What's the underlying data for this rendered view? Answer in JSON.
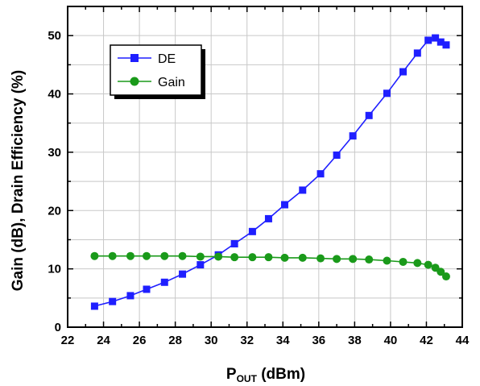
{
  "chart_data": {
    "type": "line",
    "xlabel": {
      "main": "P",
      "sub": "OUT",
      "rest": " (dBm)"
    },
    "ylabel": "Gain (dB), Drain Efficiency (%)",
    "xlim": [
      22,
      44
    ],
    "ylim": [
      0,
      55
    ],
    "xticks": [
      22,
      24,
      26,
      28,
      30,
      32,
      34,
      36,
      38,
      40,
      42,
      44
    ],
    "yticks": [
      0,
      10,
      20,
      30,
      40,
      50
    ],
    "grid": true,
    "legend_position": "top-left",
    "series": [
      {
        "name": "DE",
        "color": "#1f1fff",
        "marker": "square",
        "x": [
          23.5,
          24.5,
          25.5,
          26.4,
          27.4,
          28.4,
          29.4,
          30.4,
          31.3,
          32.3,
          33.2,
          34.1,
          35.1,
          36.1,
          37.0,
          37.9,
          38.8,
          39.8,
          40.7,
          41.5,
          42.1,
          42.5,
          42.8,
          43.1
        ],
        "y": [
          3.6,
          4.4,
          5.4,
          6.5,
          7.7,
          9.1,
          10.7,
          12.4,
          14.3,
          16.4,
          18.6,
          21.0,
          23.5,
          26.3,
          29.5,
          32.8,
          36.3,
          40.1,
          43.8,
          47.0,
          49.2,
          49.6,
          48.9,
          48.4
        ]
      },
      {
        "name": "Gain",
        "color": "#1a9a1a",
        "marker": "circle",
        "x": [
          23.5,
          24.5,
          25.5,
          26.4,
          27.4,
          28.4,
          29.4,
          30.4,
          31.3,
          32.3,
          33.2,
          34.1,
          35.1,
          36.1,
          37.0,
          37.9,
          38.8,
          39.8,
          40.7,
          41.5,
          42.1,
          42.5,
          42.8,
          43.1
        ],
        "y": [
          12.2,
          12.2,
          12.2,
          12.2,
          12.2,
          12.2,
          12.1,
          12.1,
          12.0,
          12.0,
          12.0,
          11.9,
          11.9,
          11.8,
          11.7,
          11.7,
          11.6,
          11.4,
          11.2,
          11.0,
          10.7,
          10.2,
          9.5,
          8.7
        ]
      }
    ]
  }
}
